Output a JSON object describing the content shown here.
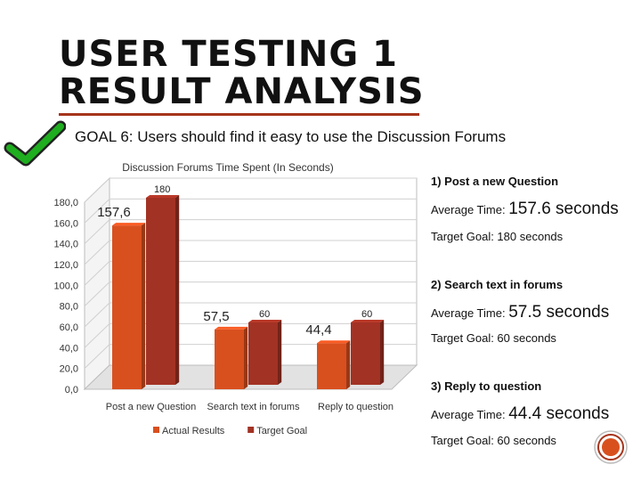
{
  "slide": {
    "title_line1": "USER TESTING 1",
    "title_line2": "RESULT ANALYSIS",
    "goal": "GOAL 6: Users should find it easy to use the Discussion Forums",
    "icons": {
      "check": "checkmark-icon",
      "badge": "circle-badge-icon"
    },
    "colors": {
      "accent": "#a6341b",
      "check": "#1fae1f"
    }
  },
  "chart_data": {
    "type": "bar",
    "title": "Discussion Forums Time Spent (In Seconds)",
    "categories": [
      "Post a new Question",
      "Search text in forums",
      "Reply to question"
    ],
    "series": [
      {
        "name": "Actual Results",
        "values": [
          157.6,
          57.5,
          44.4
        ],
        "labels": [
          "157,6",
          "57,5",
          "44,4"
        ],
        "color": "#d9501f"
      },
      {
        "name": "Target Goal",
        "values": [
          180,
          60,
          60
        ],
        "labels": [
          "180",
          "60",
          "60"
        ],
        "color": "#a23224"
      }
    ],
    "yticks": [
      "0,0",
      "20,0",
      "40,0",
      "60,0",
      "80,0",
      "100,0",
      "120,0",
      "140,0",
      "160,0",
      "180,0"
    ],
    "ylim": [
      0,
      180
    ],
    "grid": true,
    "legend": "bottom",
    "chart_style": "3d-clustered-column"
  },
  "results": [
    {
      "heading": "1) Post a new Question",
      "avg_label": "Average Time:",
      "avg_value": "157.6 seconds",
      "target": "Target Goal: 180 seconds"
    },
    {
      "heading": "2) Search text in forums",
      "avg_label": "Average Time:",
      "avg_value": "57.5 seconds",
      "target": "Target Goal: 60 seconds"
    },
    {
      "heading": "3) Reply to question",
      "avg_label": "Average Time:",
      "avg_value": "44.4 seconds",
      "target": "Target Goal: 60 seconds"
    }
  ]
}
